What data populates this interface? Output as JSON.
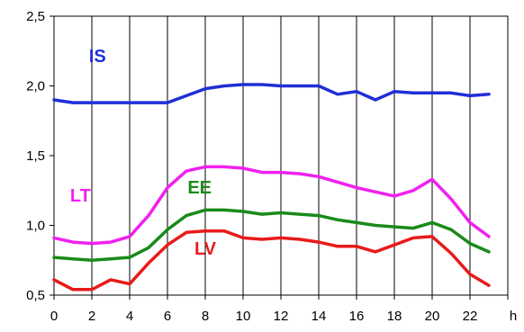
{
  "chart_data": {
    "type": "line",
    "title": "",
    "xlabel": "",
    "x_unit": "h",
    "ylabel": "",
    "xlim": [
      0,
      24
    ],
    "ylim": [
      0.5,
      2.5
    ],
    "x_ticks": [
      "0",
      "2",
      "4",
      "6",
      "8",
      "10",
      "12",
      "14",
      "16",
      "18",
      "20",
      "22"
    ],
    "y_ticks": [
      "0,5",
      "1,0",
      "1,5",
      "2,0",
      "2,5"
    ],
    "grid": {
      "vertical": true,
      "horizontal": false
    },
    "legend": "none (series labelled directly on plot)",
    "x": [
      0,
      1,
      2,
      3,
      4,
      5,
      6,
      7,
      8,
      9,
      10,
      11,
      12,
      13,
      14,
      15,
      16,
      17,
      18,
      19,
      20,
      21,
      22,
      23
    ],
    "series": [
      {
        "name": "IS",
        "color": "#1f2fd6",
        "values": [
          1.9,
          1.88,
          1.88,
          1.88,
          1.88,
          1.88,
          1.88,
          1.93,
          1.98,
          2.0,
          2.01,
          2.01,
          2.0,
          2.0,
          2.0,
          1.94,
          1.96,
          1.9,
          1.96,
          1.95,
          1.95,
          1.95,
          1.93,
          1.94
        ]
      },
      {
        "name": "LT",
        "color": "#f020f0",
        "values": [
          0.91,
          0.88,
          0.87,
          0.88,
          0.92,
          1.07,
          1.27,
          1.39,
          1.42,
          1.42,
          1.41,
          1.38,
          1.38,
          1.37,
          1.35,
          1.31,
          1.27,
          1.24,
          1.21,
          1.25,
          1.33,
          1.19,
          1.02,
          0.92
        ]
      },
      {
        "name": "EE",
        "color": "#1a8a1a",
        "values": [
          0.77,
          0.76,
          0.75,
          0.76,
          0.77,
          0.84,
          0.97,
          1.07,
          1.11,
          1.11,
          1.1,
          1.08,
          1.09,
          1.08,
          1.07,
          1.04,
          1.02,
          1.0,
          0.99,
          0.98,
          1.02,
          0.97,
          0.87,
          0.81
        ]
      },
      {
        "name": "LV",
        "color": "#e81a1a",
        "values": [
          0.61,
          0.54,
          0.54,
          0.61,
          0.58,
          0.73,
          0.86,
          0.95,
          0.96,
          0.96,
          0.91,
          0.9,
          0.91,
          0.9,
          0.88,
          0.85,
          0.85,
          0.81,
          0.86,
          0.91,
          0.92,
          0.8,
          0.65,
          0.57
        ]
      }
    ],
    "series_labels": [
      {
        "text": "IS",
        "x": 2.3,
        "y": 2.17,
        "color": "#1f2fd6"
      },
      {
        "text": "LT",
        "x": 1.4,
        "y": 1.17,
        "color": "#f020f0"
      },
      {
        "text": "EE",
        "x": 7.7,
        "y": 1.23,
        "color": "#1a8a1a"
      },
      {
        "text": "LV",
        "x": 8.0,
        "y": 0.79,
        "color": "#e81a1a"
      }
    ]
  }
}
